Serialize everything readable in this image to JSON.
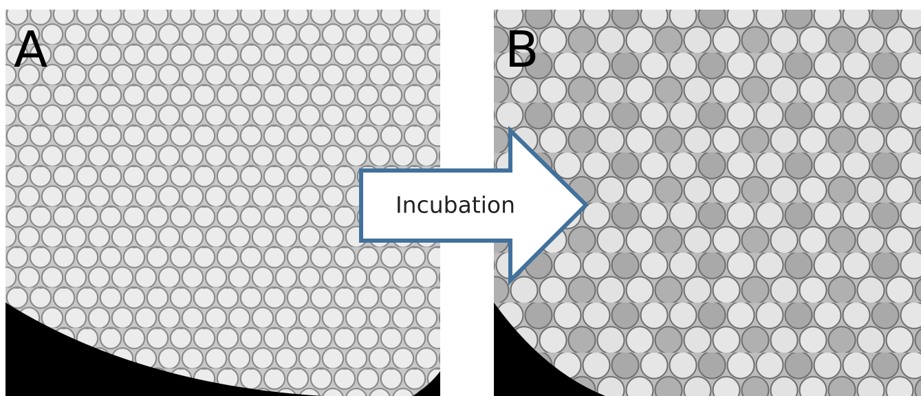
{
  "panels": [
    {
      "label": "A"
    },
    {
      "label": "B"
    }
  ],
  "arrow": {
    "label": "Incubation"
  }
}
